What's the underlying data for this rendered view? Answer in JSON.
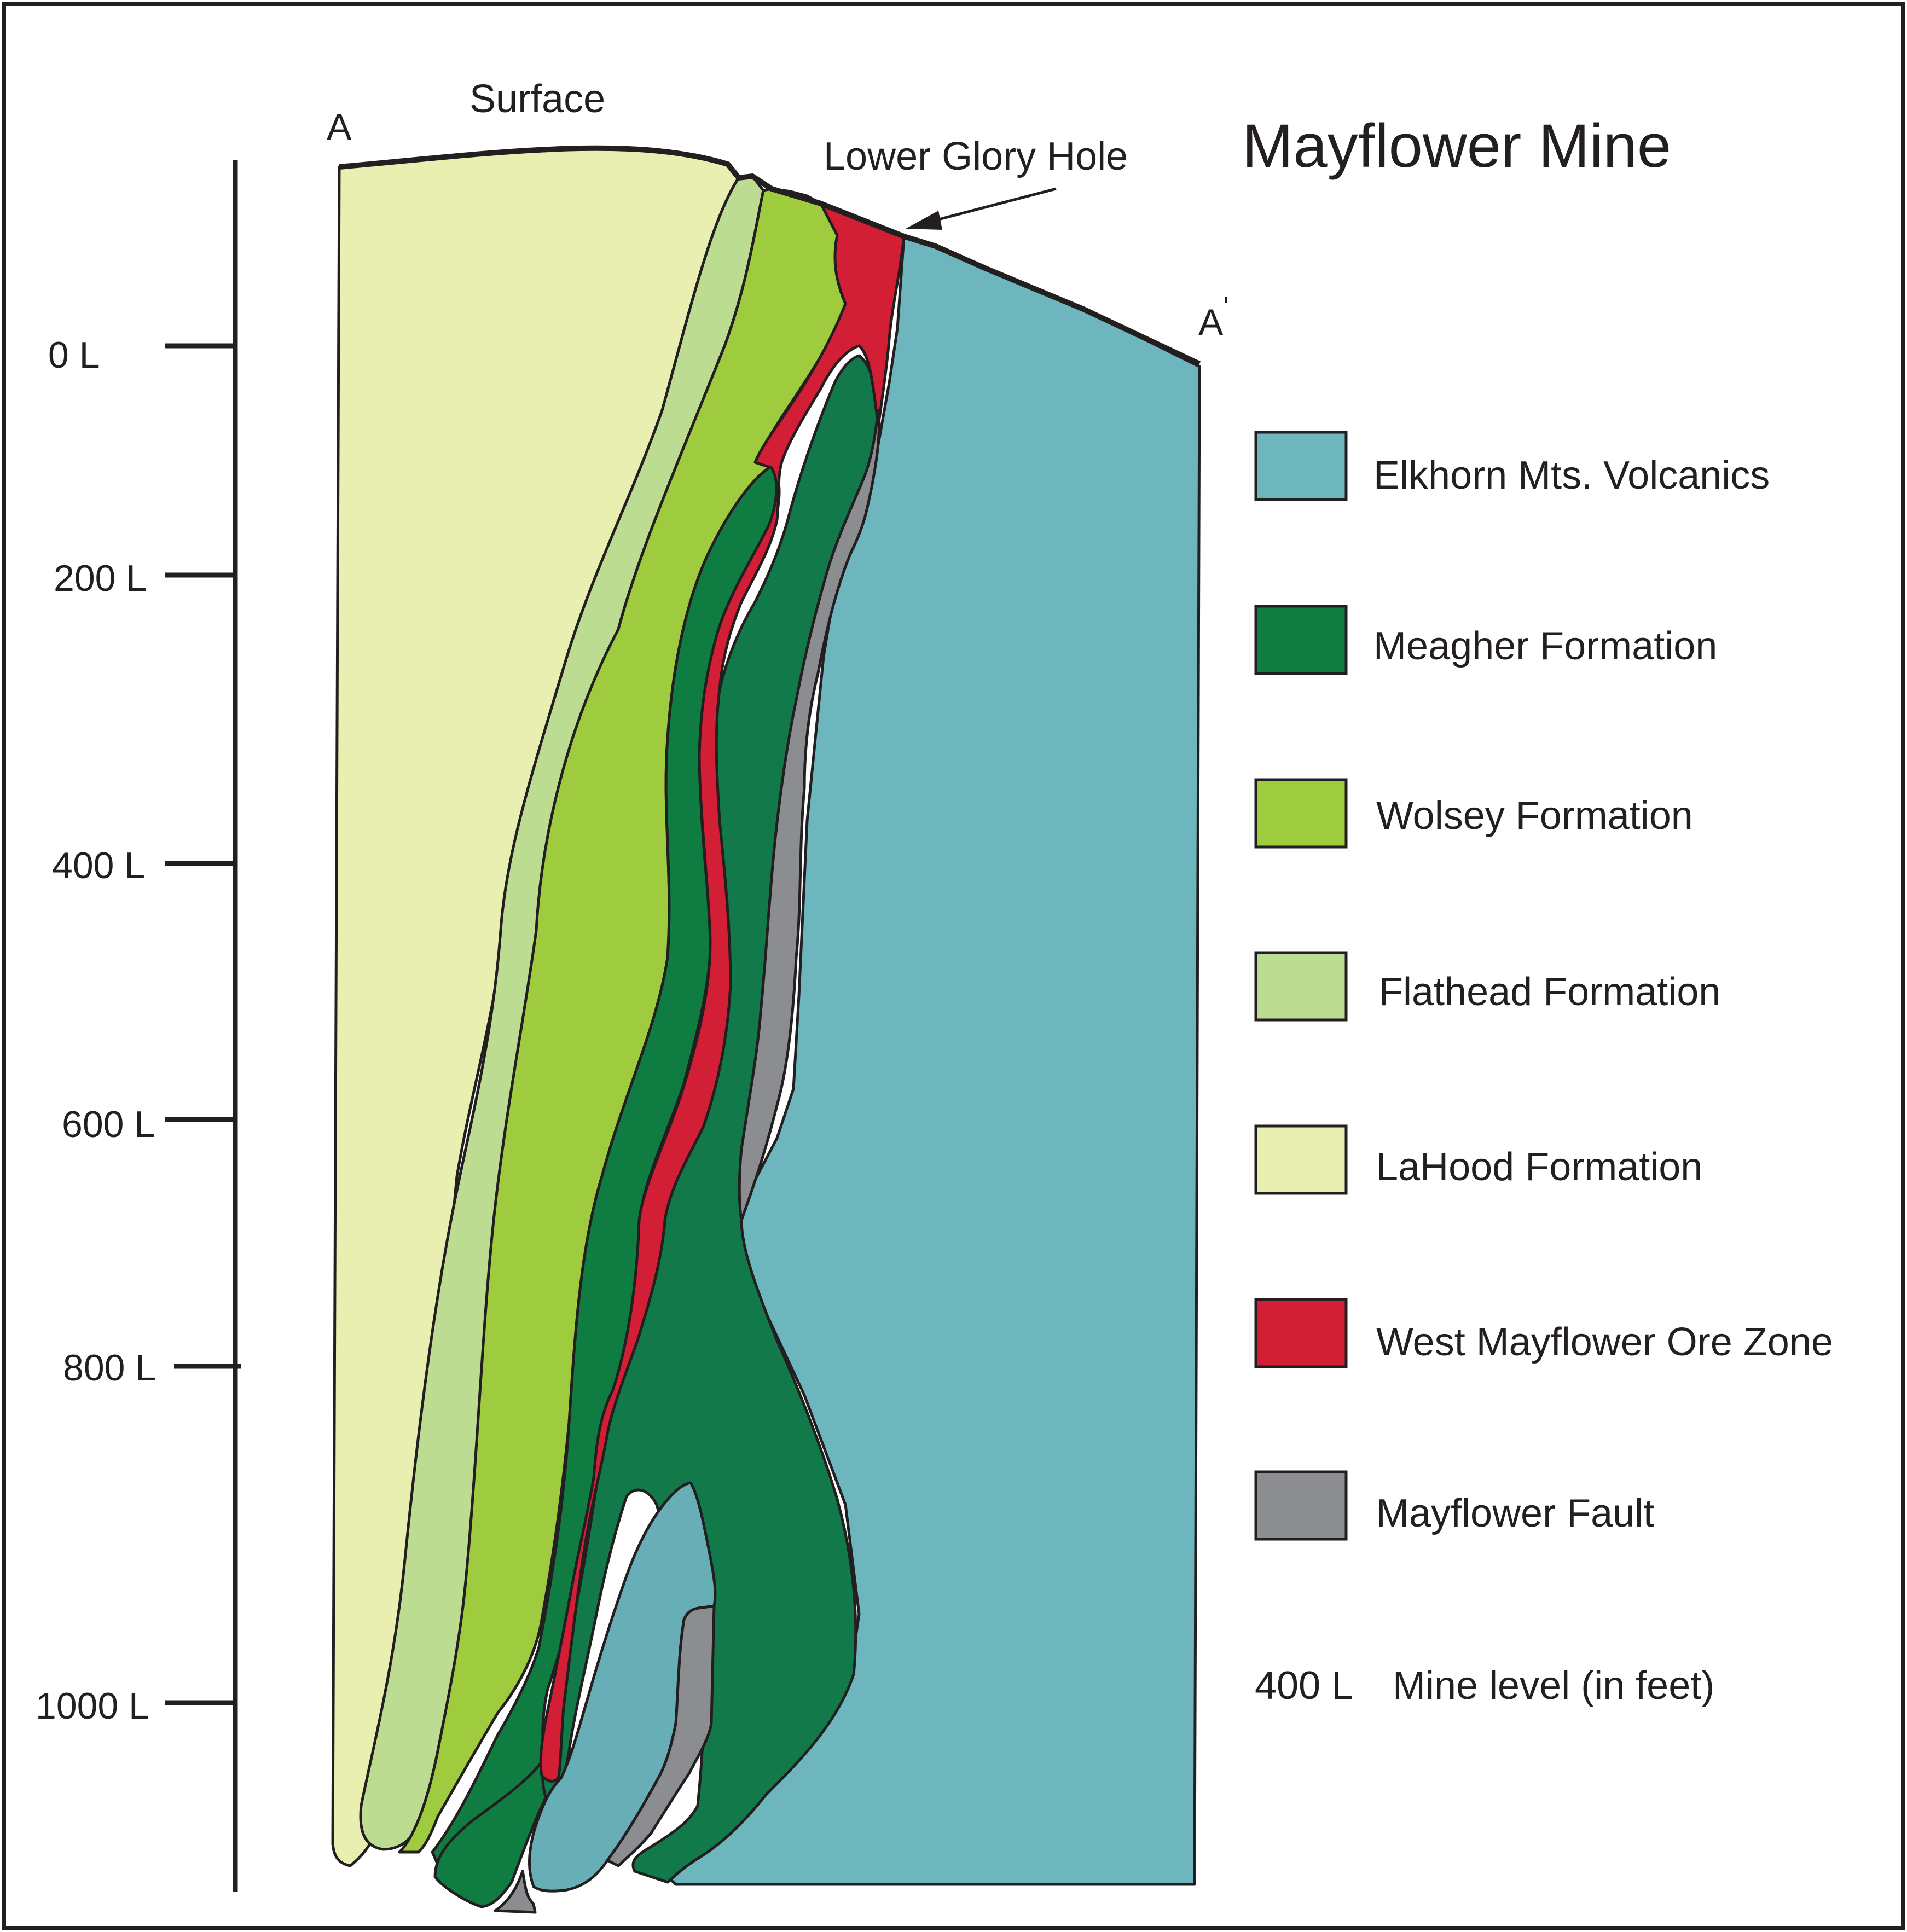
{
  "title": "Mayflower Mine",
  "labels": {
    "surface": "Surface",
    "lower_glory_hole": "Lower Glory Hole",
    "section_start": "A",
    "section_end": "A",
    "section_end_prime": "'"
  },
  "scale": {
    "levels": [
      "0 L",
      "200 L",
      "400 L",
      "600 L",
      "800 L",
      "1000 L"
    ]
  },
  "legend": [
    {
      "label": "Elkhorn Mts. Volcanics",
      "color": "#6db6bd"
    },
    {
      "label": "Meagher Formation",
      "color": "#0f7d41"
    },
    {
      "label": "Wolsey Formation",
      "color": "#9fcb3f"
    },
    {
      "label": "Flathead Formation",
      "color": "#bcdc92"
    },
    {
      "label": "LaHood Formation",
      "color": "#e8efb1"
    },
    {
      "label": "West Mayflower Ore Zone",
      "color": "#d21f35"
    },
    {
      "label": "Mayflower Fault",
      "color": "#8b8d91"
    }
  ],
  "level_key": {
    "sample": "400 L",
    "description": "Mine level (in feet)"
  },
  "colors": {
    "volcanics": "#6db6bd",
    "meagher": "#0f7d41",
    "meagher_dark": "#12794a",
    "wolsey": "#9fcb3f",
    "flathead": "#bcdc92",
    "lahood": "#e8efb1",
    "ore_zone": "#d21f35",
    "fault": "#8b8d91",
    "lower_volcanics": "#68aeb6",
    "outline": "#231f20"
  }
}
